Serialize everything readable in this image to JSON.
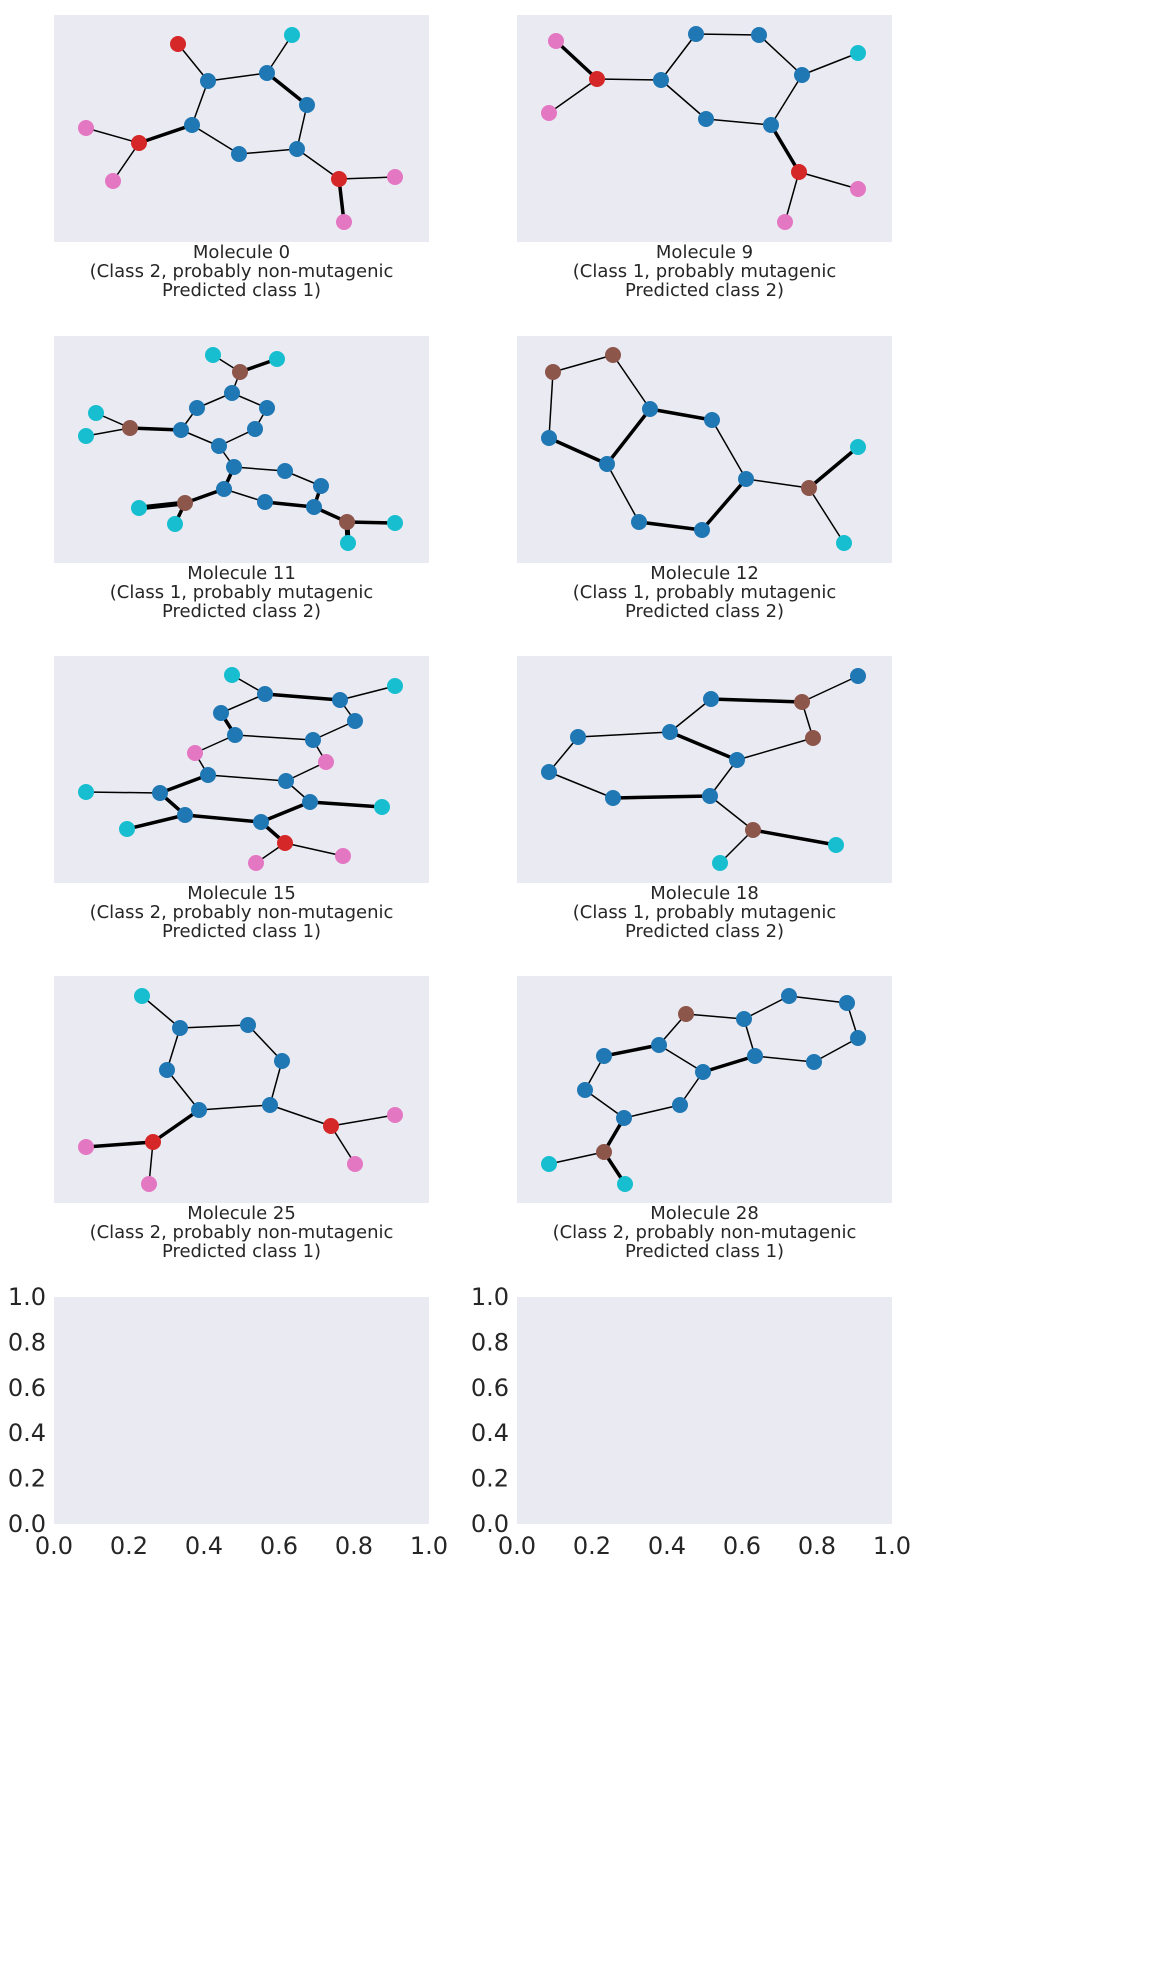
{
  "figure": {
    "background": "#ffffff",
    "panel_bg": "#eaeaf2",
    "node_colors": {
      "C": "#1f77b4",
      "O": "#d62728",
      "H": "#e377c2",
      "T": "#17becf",
      "B": "#8c564b"
    }
  },
  "chart_data": [
    {
      "type": "graph",
      "caption": [
        "Molecule 0",
        "(Class 2, probably non-mutagenic",
        "Predicted class 1)"
      ],
      "nodes": [
        [
          "O",
          178,
          44
        ],
        [
          "T",
          292,
          35
        ],
        [
          "C",
          208,
          81
        ],
        [
          "C",
          267,
          73
        ],
        [
          "C",
          307,
          105
        ],
        [
          "H",
          86,
          128
        ],
        [
          "C",
          192,
          125
        ],
        [
          "O",
          139,
          143
        ],
        [
          "C",
          239,
          154
        ],
        [
          "C",
          297,
          149
        ],
        [
          "H",
          113,
          181
        ],
        [
          "O",
          339,
          179
        ],
        [
          "H",
          395,
          177
        ],
        [
          "H",
          344,
          222
        ]
      ],
      "edges": [
        [
          0,
          2,
          1
        ],
        [
          1,
          3,
          1
        ],
        [
          2,
          3,
          1
        ],
        [
          3,
          4,
          2
        ],
        [
          4,
          9,
          1
        ],
        [
          9,
          8,
          1
        ],
        [
          8,
          6,
          1
        ],
        [
          6,
          2,
          1
        ],
        [
          6,
          7,
          2
        ],
        [
          7,
          5,
          1
        ],
        [
          7,
          10,
          1
        ],
        [
          9,
          11,
          1
        ],
        [
          11,
          12,
          1
        ],
        [
          11,
          13,
          2
        ]
      ]
    },
    {
      "type": "graph",
      "caption": [
        "Molecule 9",
        "(Class 1, probably mutagenic",
        "Predicted class 2)"
      ],
      "nodes": [
        [
          "H",
          556,
          41
        ],
        [
          "C",
          696,
          34
        ],
        [
          "C",
          759,
          35
        ],
        [
          "T",
          858,
          53
        ],
        [
          "O",
          597,
          79
        ],
        [
          "C",
          661,
          80
        ],
        [
          "C",
          802,
          75
        ],
        [
          "H",
          549,
          113
        ],
        [
          "C",
          706,
          119
        ],
        [
          "C",
          771,
          125
        ],
        [
          "O",
          799,
          172
        ],
        [
          "H",
          858,
          189
        ],
        [
          "H",
          785,
          222
        ]
      ],
      "edges": [
        [
          0,
          4,
          2
        ],
        [
          4,
          7,
          1
        ],
        [
          4,
          5,
          1
        ],
        [
          5,
          1,
          1
        ],
        [
          1,
          2,
          1
        ],
        [
          2,
          6,
          1
        ],
        [
          6,
          3,
          1
        ],
        [
          6,
          9,
          1
        ],
        [
          9,
          8,
          1
        ],
        [
          8,
          5,
          1
        ],
        [
          9,
          10,
          2
        ],
        [
          10,
          11,
          1
        ],
        [
          10,
          12,
          1
        ]
      ]
    },
    {
      "type": "graph",
      "caption": [
        "Molecule 11",
        "(Class 1, probably mutagenic",
        "Predicted class 2)"
      ],
      "nodes": [
        [
          "T",
          213,
          355
        ],
        [
          "T",
          277,
          359
        ],
        [
          "B",
          240,
          372
        ],
        [
          "C",
          232,
          393
        ],
        [
          "C",
          197,
          408
        ],
        [
          "C",
          267,
          408
        ],
        [
          "T",
          96,
          413
        ],
        [
          "B",
          130,
          428
        ],
        [
          "C",
          181,
          430
        ],
        [
          "C",
          255,
          429
        ],
        [
          "T",
          86,
          436
        ],
        [
          "C",
          219,
          446
        ],
        [
          "C",
          234,
          467
        ],
        [
          "C",
          285,
          471
        ],
        [
          "C",
          321,
          486
        ],
        [
          "C",
          224,
          489
        ],
        [
          "B",
          185,
          503
        ],
        [
          "C",
          265,
          502
        ],
        [
          "T",
          139,
          508
        ],
        [
          "C",
          314,
          507
        ],
        [
          "T",
          175,
          524
        ],
        [
          "B",
          347,
          522
        ],
        [
          "T",
          395,
          523
        ],
        [
          "T",
          348,
          543
        ]
      ],
      "edges": [
        [
          0,
          2,
          1
        ],
        [
          1,
          2,
          2
        ],
        [
          2,
          3,
          1
        ],
        [
          3,
          4,
          1
        ],
        [
          3,
          5,
          1
        ],
        [
          4,
          8,
          1
        ],
        [
          5,
          9,
          1
        ],
        [
          8,
          11,
          1
        ],
        [
          9,
          11,
          1
        ],
        [
          8,
          7,
          2
        ],
        [
          7,
          6,
          1
        ],
        [
          7,
          10,
          1
        ],
        [
          11,
          12,
          1
        ],
        [
          12,
          13,
          1
        ],
        [
          13,
          14,
          1
        ],
        [
          14,
          19,
          2
        ],
        [
          12,
          15,
          2
        ],
        [
          15,
          17,
          1
        ],
        [
          17,
          19,
          2
        ],
        [
          15,
          16,
          2
        ],
        [
          16,
          18,
          3
        ],
        [
          16,
          20,
          2
        ],
        [
          19,
          21,
          2
        ],
        [
          21,
          22,
          2
        ],
        [
          21,
          23,
          3
        ]
      ]
    },
    {
      "type": "graph",
      "caption": [
        "Molecule 12",
        "(Class 1, probably mutagenic",
        "Predicted class 2)"
      ],
      "nodes": [
        [
          "B",
          613,
          355
        ],
        [
          "B",
          553,
          372
        ],
        [
          "C",
          650,
          409
        ],
        [
          "C",
          712,
          420
        ],
        [
          "C",
          549,
          438
        ],
        [
          "T",
          858,
          447
        ],
        [
          "C",
          607,
          464
        ],
        [
          "C",
          746,
          479
        ],
        [
          "B",
          809,
          488
        ],
        [
          "C",
          639,
          522
        ],
        [
          "C",
          702,
          530
        ],
        [
          "T",
          844,
          543
        ]
      ],
      "edges": [
        [
          0,
          1,
          1
        ],
        [
          1,
          4,
          1
        ],
        [
          4,
          6,
          2
        ],
        [
          6,
          2,
          2
        ],
        [
          2,
          0,
          1
        ],
        [
          2,
          3,
          2
        ],
        [
          3,
          7,
          1
        ],
        [
          7,
          10,
          2
        ],
        [
          10,
          9,
          2
        ],
        [
          9,
          6,
          1
        ],
        [
          7,
          8,
          1
        ],
        [
          8,
          5,
          2
        ],
        [
          8,
          11,
          1
        ]
      ]
    },
    {
      "type": "graph",
      "caption": [
        "Molecule 15",
        "(Class 2, probably non-mutagenic",
        "Predicted class 1)"
      ],
      "nodes": [
        [
          "T",
          232,
          675
        ],
        [
          "T",
          395,
          686
        ],
        [
          "C",
          265,
          694
        ],
        [
          "C",
          340,
          700
        ],
        [
          "C",
          221,
          713
        ],
        [
          "C",
          355,
          721
        ],
        [
          "C",
          235,
          735
        ],
        [
          "C",
          313,
          740
        ],
        [
          "H",
          195,
          753
        ],
        [
          "H",
          326,
          762
        ],
        [
          "C",
          208,
          775
        ],
        [
          "C",
          286,
          781
        ],
        [
          "T",
          86,
          792
        ],
        [
          "C",
          160,
          793
        ],
        [
          "C",
          310,
          802
        ],
        [
          "T",
          382,
          807
        ],
        [
          "C",
          185,
          815
        ],
        [
          "C",
          261,
          822
        ],
        [
          "T",
          127,
          829
        ],
        [
          "O",
          285,
          843
        ],
        [
          "H",
          343,
          856
        ],
        [
          "H",
          256,
          863
        ]
      ],
      "edges": [
        [
          0,
          2,
          1
        ],
        [
          2,
          3,
          2
        ],
        [
          3,
          1,
          1
        ],
        [
          2,
          4,
          1
        ],
        [
          4,
          6,
          2
        ],
        [
          3,
          5,
          1
        ],
        [
          5,
          7,
          1
        ],
        [
          6,
          7,
          1
        ],
        [
          6,
          8,
          1
        ],
        [
          7,
          9,
          1
        ],
        [
          8,
          10,
          1
        ],
        [
          9,
          11,
          1
        ],
        [
          10,
          11,
          1
        ],
        [
          10,
          13,
          2
        ],
        [
          13,
          12,
          1
        ],
        [
          13,
          16,
          2
        ],
        [
          11,
          14,
          1
        ],
        [
          14,
          15,
          2
        ],
        [
          14,
          17,
          2
        ],
        [
          16,
          17,
          2
        ],
        [
          16,
          18,
          2
        ],
        [
          17,
          19,
          2
        ],
        [
          19,
          20,
          1
        ],
        [
          19,
          21,
          1
        ]
      ]
    },
    {
      "type": "graph",
      "caption": [
        "Molecule 18",
        "(Class 1, probably mutagenic",
        "Predicted class 2)"
      ],
      "nodes": [
        [
          "C",
          858,
          676
        ],
        [
          "C",
          711,
          699
        ],
        [
          "B",
          802,
          702
        ],
        [
          "C",
          670,
          732
        ],
        [
          "C",
          578,
          737
        ],
        [
          "B",
          813,
          738
        ],
        [
          "C",
          737,
          760
        ],
        [
          "C",
          549,
          772
        ],
        [
          "C",
          613,
          798
        ],
        [
          "C",
          710,
          796
        ],
        [
          "B",
          753,
          830
        ],
        [
          "T",
          836,
          845
        ],
        [
          "T",
          720,
          863
        ]
      ],
      "edges": [
        [
          0,
          2,
          1
        ],
        [
          2,
          1,
          2
        ],
        [
          1,
          3,
          1
        ],
        [
          2,
          5,
          1
        ],
        [
          5,
          6,
          1
        ],
        [
          3,
          6,
          2
        ],
        [
          3,
          4,
          1
        ],
        [
          4,
          7,
          1
        ],
        [
          7,
          8,
          1
        ],
        [
          8,
          9,
          2
        ],
        [
          9,
          6,
          1
        ],
        [
          9,
          10,
          1
        ],
        [
          10,
          11,
          2
        ],
        [
          10,
          12,
          1
        ]
      ]
    },
    {
      "type": "graph",
      "caption": [
        "Molecule 25",
        "(Class 2, probably non-mutagenic",
        "Predicted class 1)"
      ],
      "nodes": [
        [
          "T",
          142,
          996
        ],
        [
          "C",
          180,
          1028
        ],
        [
          "C",
          248,
          1025
        ],
        [
          "C",
          282,
          1061
        ],
        [
          "C",
          167,
          1070
        ],
        [
          "C",
          270,
          1105
        ],
        [
          "C",
          199,
          1110
        ],
        [
          "O",
          331,
          1126
        ],
        [
          "H",
          395,
          1115
        ],
        [
          "O",
          153,
          1142
        ],
        [
          "H",
          86,
          1147
        ],
        [
          "H",
          355,
          1164
        ],
        [
          "H",
          149,
          1184
        ]
      ],
      "edges": [
        [
          0,
          1,
          1
        ],
        [
          1,
          2,
          1
        ],
        [
          2,
          3,
          1
        ],
        [
          3,
          5,
          1
        ],
        [
          1,
          4,
          1
        ],
        [
          4,
          6,
          1
        ],
        [
          5,
          6,
          1
        ],
        [
          6,
          9,
          2
        ],
        [
          9,
          10,
          2
        ],
        [
          9,
          12,
          1
        ],
        [
          5,
          7,
          1
        ],
        [
          7,
          8,
          1
        ],
        [
          7,
          11,
          1
        ]
      ]
    },
    {
      "type": "graph",
      "caption": [
        "Molecule 28",
        "(Class 2, probably non-mutagenic",
        "Predicted class 1)"
      ],
      "nodes": [
        [
          "C",
          789,
          996
        ],
        [
          "C",
          847,
          1003
        ],
        [
          "B",
          686,
          1014
        ],
        [
          "C",
          744,
          1019
        ],
        [
          "C",
          858,
          1038
        ],
        [
          "C",
          659,
          1045
        ],
        [
          "C",
          604,
          1056
        ],
        [
          "C",
          755,
          1056
        ],
        [
          "C",
          814,
          1062
        ],
        [
          "C",
          703,
          1072
        ],
        [
          "C",
          585,
          1090
        ],
        [
          "C",
          680,
          1105
        ],
        [
          "C",
          624,
          1118
        ],
        [
          "B",
          604,
          1152
        ],
        [
          "T",
          549,
          1164
        ],
        [
          "T",
          625,
          1184
        ]
      ],
      "edges": [
        [
          0,
          1,
          1
        ],
        [
          1,
          4,
          1
        ],
        [
          4,
          8,
          1
        ],
        [
          8,
          7,
          1
        ],
        [
          7,
          3,
          1
        ],
        [
          3,
          0,
          1
        ],
        [
          3,
          2,
          1
        ],
        [
          2,
          5,
          1
        ],
        [
          5,
          9,
          1
        ],
        [
          9,
          7,
          2
        ],
        [
          5,
          6,
          2
        ],
        [
          6,
          10,
          1
        ],
        [
          10,
          12,
          1
        ],
        [
          12,
          11,
          1
        ],
        [
          11,
          9,
          1
        ],
        [
          12,
          13,
          2
        ],
        [
          13,
          14,
          1
        ],
        [
          13,
          15,
          2
        ]
      ]
    },
    {
      "type": "empty-axes",
      "xlim": [
        0,
        1
      ],
      "ylim": [
        0,
        1
      ],
      "xticks": [
        "0.0",
        "0.2",
        "0.4",
        "0.6",
        "0.8",
        "1.0"
      ],
      "yticks": [
        "0.0",
        "0.2",
        "0.4",
        "0.6",
        "0.8",
        "1.0"
      ]
    },
    {
      "type": "empty-axes",
      "xlim": [
        0,
        1
      ],
      "ylim": [
        0,
        1
      ],
      "xticks": [
        "0.0",
        "0.2",
        "0.4",
        "0.6",
        "0.8",
        "1.0"
      ],
      "yticks": [
        "0.0",
        "0.2",
        "0.4",
        "0.6",
        "0.8",
        "1.0"
      ]
    }
  ]
}
